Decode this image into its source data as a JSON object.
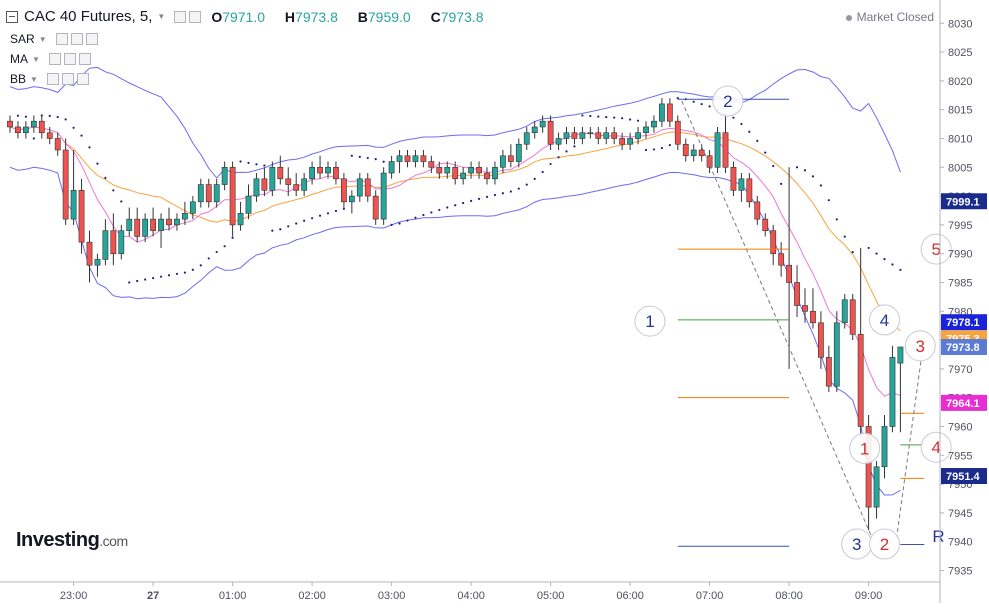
{
  "header": {
    "title": "CAC 40 Futures, 5,",
    "open_label": "O",
    "open_value": "7971.0",
    "high_label": "H",
    "high_value": "7973.8",
    "low_label": "B",
    "low_value": "7959.0",
    "close_label": "C",
    "close_value": "7973.8",
    "market_status": "Market Closed"
  },
  "indicators": [
    {
      "label": "SAR"
    },
    {
      "label": "MA"
    },
    {
      "label": "BB"
    }
  ],
  "logo": {
    "main": "Investing",
    "suffix": ".com"
  },
  "colors": {
    "up": "#26a69a",
    "down": "#ef5350",
    "bb": "#6c6cf2",
    "ma_fast": "#ee78d6",
    "ma_slow": "#f7a440",
    "sar": "#1a237e",
    "fib_orange": "#f57c00",
    "fib_green": "#43a047",
    "fib_navy": "#1a237e",
    "wave_red": "#d32f2f",
    "wave_navy": "#283593"
  },
  "chart_data": {
    "type": "candlestick",
    "symbol": "CAC 40 Futures",
    "interval": "5",
    "y_axis": {
      "range": [
        7933,
        8033
      ],
      "ticks": [
        7935,
        7940,
        7945,
        7950,
        7955,
        7960,
        7965,
        7970,
        7975,
        7980,
        7985,
        7990,
        7995,
        8000,
        8005,
        8010,
        8015,
        8020,
        8025,
        8030
      ]
    },
    "x_axis": {
      "ticks": [
        {
          "label": "23:00",
          "index": 8
        },
        {
          "label": "27",
          "index": 18
        },
        {
          "label": "01:00",
          "index": 28
        },
        {
          "label": "02:00",
          "index": 38
        },
        {
          "label": "03:00",
          "index": 48
        },
        {
          "label": "04:00",
          "index": 58
        },
        {
          "label": "05:00",
          "index": 68
        },
        {
          "label": "06:00",
          "index": 78
        },
        {
          "label": "07:00",
          "index": 88
        },
        {
          "label": "08:00",
          "index": 98
        },
        {
          "label": "09:00",
          "index": 108
        }
      ]
    },
    "candles": [
      {
        "o": 8013,
        "h": 8014,
        "l": 8011,
        "c": 8012
      },
      {
        "o": 8012,
        "h": 8013,
        "l": 8010,
        "c": 8011
      },
      {
        "o": 8011,
        "h": 8013,
        "l": 8010,
        "c": 8012
      },
      {
        "o": 8012,
        "h": 8014,
        "l": 8011,
        "c": 8013
      },
      {
        "o": 8013,
        "h": 8014,
        "l": 8010,
        "c": 8011
      },
      {
        "o": 8011,
        "h": 8012,
        "l": 8009,
        "c": 8010
      },
      {
        "o": 8010,
        "h": 8011,
        "l": 8007,
        "c": 8008
      },
      {
        "o": 8008,
        "h": 8010,
        "l": 7995,
        "c": 7996
      },
      {
        "o": 7996,
        "h": 8008,
        "l": 7995,
        "c": 8001
      },
      {
        "o": 8001,
        "h": 8003,
        "l": 7990,
        "c": 7992
      },
      {
        "o": 7992,
        "h": 7994,
        "l": 7985,
        "c": 7988
      },
      {
        "o": 7988,
        "h": 7990,
        "l": 7986,
        "c": 7989
      },
      {
        "o": 7989,
        "h": 7996,
        "l": 7988,
        "c": 7994
      },
      {
        "o": 7994,
        "h": 7997,
        "l": 7988,
        "c": 7990
      },
      {
        "o": 7990,
        "h": 7995,
        "l": 7989,
        "c": 7994
      },
      {
        "o": 7994,
        "h": 7998,
        "l": 7993,
        "c": 7996
      },
      {
        "o": 7996,
        "h": 7998,
        "l": 7992,
        "c": 7993
      },
      {
        "o": 7993,
        "h": 7997,
        "l": 7992,
        "c": 7996
      },
      {
        "o": 7996,
        "h": 7998,
        "l": 7993,
        "c": 7994
      },
      {
        "o": 7994,
        "h": 7997,
        "l": 7991,
        "c": 7996
      },
      {
        "o": 7996,
        "h": 7998,
        "l": 7994,
        "c": 7995
      },
      {
        "o": 7995,
        "h": 7997,
        "l": 7994,
        "c": 7996
      },
      {
        "o": 7996,
        "h": 7999,
        "l": 7995,
        "c": 7997
      },
      {
        "o": 7997,
        "h": 8000,
        "l": 7996,
        "c": 7999
      },
      {
        "o": 7999,
        "h": 8003,
        "l": 7998,
        "c": 8002
      },
      {
        "o": 8002,
        "h": 8003,
        "l": 7998,
        "c": 7999
      },
      {
        "o": 7999,
        "h": 8003,
        "l": 7998,
        "c": 8002
      },
      {
        "o": 8002,
        "h": 8006,
        "l": 8001,
        "c": 8005
      },
      {
        "o": 8005,
        "h": 8006,
        "l": 7993,
        "c": 7995
      },
      {
        "o": 7995,
        "h": 7999,
        "l": 7994,
        "c": 7997
      },
      {
        "o": 7997,
        "h": 8002,
        "l": 7996,
        "c": 8000
      },
      {
        "o": 8000,
        "h": 8004,
        "l": 7999,
        "c": 8003
      },
      {
        "o": 8003,
        "h": 8005,
        "l": 8000,
        "c": 8001
      },
      {
        "o": 8001,
        "h": 8006,
        "l": 8000,
        "c": 8005
      },
      {
        "o": 8005,
        "h": 8007,
        "l": 8002,
        "c": 8003
      },
      {
        "o": 8003,
        "h": 8005,
        "l": 8000,
        "c": 8002
      },
      {
        "o": 8002,
        "h": 8004,
        "l": 8000,
        "c": 8001
      },
      {
        "o": 8001,
        "h": 8004,
        "l": 8000,
        "c": 8003
      },
      {
        "o": 8003,
        "h": 8006,
        "l": 8002,
        "c": 8005
      },
      {
        "o": 8005,
        "h": 8007,
        "l": 8003,
        "c": 8004
      },
      {
        "o": 8004,
        "h": 8006,
        "l": 8003,
        "c": 8005
      },
      {
        "o": 8005,
        "h": 8006,
        "l": 8002,
        "c": 8003
      },
      {
        "o": 8003,
        "h": 8004,
        "l": 7998,
        "c": 7999
      },
      {
        "o": 7999,
        "h": 8001,
        "l": 7997,
        "c": 8000
      },
      {
        "o": 8000,
        "h": 8004,
        "l": 7999,
        "c": 8003
      },
      {
        "o": 8003,
        "h": 8004,
        "l": 7999,
        "c": 8000
      },
      {
        "o": 8000,
        "h": 8001,
        "l": 7995,
        "c": 7996
      },
      {
        "o": 7996,
        "h": 8005,
        "l": 7995,
        "c": 8004
      },
      {
        "o": 8004,
        "h": 8007,
        "l": 8003,
        "c": 8006
      },
      {
        "o": 8006,
        "h": 8008,
        "l": 8004,
        "c": 8007
      },
      {
        "o": 8007,
        "h": 8008,
        "l": 8005,
        "c": 8006
      },
      {
        "o": 8006,
        "h": 8008,
        "l": 8005,
        "c": 8007
      },
      {
        "o": 8007,
        "h": 8008,
        "l": 8005,
        "c": 8006
      },
      {
        "o": 8006,
        "h": 8007,
        "l": 8004,
        "c": 8005
      },
      {
        "o": 8005,
        "h": 8006,
        "l": 8003,
        "c": 8004
      },
      {
        "o": 8004,
        "h": 8006,
        "l": 8003,
        "c": 8005
      },
      {
        "o": 8005,
        "h": 8006,
        "l": 8002,
        "c": 8003
      },
      {
        "o": 8003,
        "h": 8005,
        "l": 8002,
        "c": 8004
      },
      {
        "o": 8004,
        "h": 8006,
        "l": 8003,
        "c": 8005
      },
      {
        "o": 8005,
        "h": 8006,
        "l": 8003,
        "c": 8004
      },
      {
        "o": 8004,
        "h": 8005,
        "l": 8002,
        "c": 8003
      },
      {
        "o": 8003,
        "h": 8006,
        "l": 8002,
        "c": 8005
      },
      {
        "o": 8005,
        "h": 8008,
        "l": 8004,
        "c": 8007
      },
      {
        "o": 8007,
        "h": 8009,
        "l": 8005,
        "c": 8006
      },
      {
        "o": 8006,
        "h": 8010,
        "l": 8005,
        "c": 8009
      },
      {
        "o": 8009,
        "h": 8012,
        "l": 8008,
        "c": 8011
      },
      {
        "o": 8011,
        "h": 8013,
        "l": 8010,
        "c": 8012
      },
      {
        "o": 8012,
        "h": 8014,
        "l": 8011,
        "c": 8013
      },
      {
        "o": 8013,
        "h": 8014,
        "l": 8008,
        "c": 8009
      },
      {
        "o": 8009,
        "h": 8011,
        "l": 8008,
        "c": 8010
      },
      {
        "o": 8010,
        "h": 8012,
        "l": 8009,
        "c": 8011
      },
      {
        "o": 8011,
        "h": 8012,
        "l": 8009,
        "c": 8010
      },
      {
        "o": 8010,
        "h": 8012,
        "l": 8009,
        "c": 8011
      },
      {
        "o": 8011,
        "h": 8012,
        "l": 8010,
        "c": 8011
      },
      {
        "o": 8011,
        "h": 8012,
        "l": 8009,
        "c": 8010
      },
      {
        "o": 8010,
        "h": 8012,
        "l": 8009,
        "c": 8011
      },
      {
        "o": 8011,
        "h": 8012,
        "l": 8009,
        "c": 8010
      },
      {
        "o": 8010,
        "h": 8011,
        "l": 8008,
        "c": 8009
      },
      {
        "o": 8009,
        "h": 8011,
        "l": 8008,
        "c": 8010
      },
      {
        "o": 8010,
        "h": 8012,
        "l": 8009,
        "c": 8011
      },
      {
        "o": 8011,
        "h": 8013,
        "l": 8010,
        "c": 8012
      },
      {
        "o": 8012,
        "h": 8014,
        "l": 8011,
        "c": 8013
      },
      {
        "o": 8013,
        "h": 8017,
        "l": 8012,
        "c": 8016
      },
      {
        "o": 8016,
        "h": 8017,
        "l": 8012,
        "c": 8013
      },
      {
        "o": 8013,
        "h": 8014,
        "l": 8008,
        "c": 8009
      },
      {
        "o": 8009,
        "h": 8010,
        "l": 8006,
        "c": 8007
      },
      {
        "o": 8007,
        "h": 8009,
        "l": 8006,
        "c": 8008
      },
      {
        "o": 8008,
        "h": 8009,
        "l": 8006,
        "c": 8007
      },
      {
        "o": 8007,
        "h": 8008,
        "l": 8004,
        "c": 8005
      },
      {
        "o": 8005,
        "h": 8012,
        "l": 8004,
        "c": 8011
      },
      {
        "o": 8011,
        "h": 8014,
        "l": 8004,
        "c": 8005
      },
      {
        "o": 8005,
        "h": 8006,
        "l": 8000,
        "c": 8001
      },
      {
        "o": 8001,
        "h": 8004,
        "l": 7999,
        "c": 8003
      },
      {
        "o": 8003,
        "h": 8004,
        "l": 7998,
        "c": 7999
      },
      {
        "o": 7999,
        "h": 8000,
        "l": 7995,
        "c": 7996
      },
      {
        "o": 7996,
        "h": 7997,
        "l": 7993,
        "c": 7994
      },
      {
        "o": 7994,
        "h": 7995,
        "l": 7988,
        "c": 7990
      },
      {
        "o": 7990,
        "h": 7992,
        "l": 7986,
        "c": 7988
      },
      {
        "o": 7988,
        "h": 8005,
        "l": 7970,
        "c": 7985
      },
      {
        "o": 7985,
        "h": 7988,
        "l": 7979,
        "c": 7981
      },
      {
        "o": 7981,
        "h": 7984,
        "l": 7978,
        "c": 7980
      },
      {
        "o": 7980,
        "h": 7984,
        "l": 7977,
        "c": 7978
      },
      {
        "o": 7978,
        "h": 7980,
        "l": 7970,
        "c": 7972
      },
      {
        "o": 7972,
        "h": 7974,
        "l": 7966,
        "c": 7967
      },
      {
        "o": 7967,
        "h": 7980,
        "l": 7966,
        "c": 7978
      },
      {
        "o": 7978,
        "h": 7983,
        "l": 7977,
        "c": 7982
      },
      {
        "o": 7982,
        "h": 7983,
        "l": 7975,
        "c": 7976
      },
      {
        "o": 7976,
        "h": 7991,
        "l": 7958,
        "c": 7960
      },
      {
        "o": 7960,
        "h": 7962,
        "l": 7942,
        "c": 7946
      },
      {
        "o": 7946,
        "h": 7954,
        "l": 7944,
        "c": 7953
      },
      {
        "o": 7953,
        "h": 7962,
        "l": 7951,
        "c": 7960
      },
      {
        "o": 7960,
        "h": 7974,
        "l": 7959,
        "c": 7972
      },
      {
        "o": 7971,
        "h": 7973.8,
        "l": 7959,
        "c": 7973.8
      }
    ],
    "price_labels": [
      {
        "value": 7999.1,
        "text": "7999.1",
        "color": "#1a2b8c"
      },
      {
        "value": 7978.1,
        "text": "7978.1",
        "color": "#1a23d9"
      },
      {
        "value": 7975.3,
        "text": "7975.3",
        "color": "#f7a440"
      },
      {
        "value": 7973.8,
        "text": "7973.8",
        "color": "#5b7bd5"
      },
      {
        "value": 7964.1,
        "text": "7964.1",
        "color": "#e82dd3"
      },
      {
        "value": 7951.4,
        "text": "7951.4",
        "color": "#1a2b8c"
      }
    ],
    "fib_levels": [
      {
        "price": 8016.8,
        "color": "#3f51b5",
        "x1": 84,
        "x2": 98
      },
      {
        "price": 7990.8,
        "color": "#f57c00",
        "x1": 84,
        "x2": 98
      },
      {
        "price": 7978.5,
        "color": "#43a047",
        "x1": 84,
        "x2": 98
      },
      {
        "price": 7965.0,
        "color": "#f57c00",
        "x1": 84,
        "x2": 98
      },
      {
        "price": 7939.2,
        "color": "#3f51b5",
        "x1": 84,
        "x2": 98
      },
      {
        "price": 7962.3,
        "color": "#f57c00",
        "x1": 112,
        "x2": 115
      },
      {
        "price": 7956.8,
        "color": "#43a047",
        "x1": 112,
        "x2": 115
      },
      {
        "price": 7951.0,
        "color": "#f57c00",
        "x1": 112,
        "x2": 115
      },
      {
        "price": 7939.5,
        "color": "#3f51b5",
        "x1": 112,
        "x2": 115
      }
    ],
    "wave_lines": [
      {
        "points": [
          [
            84.5,
            8016.5
          ],
          [
            108.5,
            7940.5
          ]
        ],
        "dash": true
      },
      {
        "points": [
          [
            111.5,
            7940.5
          ],
          [
            115,
            7975.5
          ]
        ],
        "dash": true
      }
    ],
    "wave_labels": [
      {
        "text": "1",
        "index": 80.5,
        "price": 7978.3,
        "color": "#283593",
        "circle": true
      },
      {
        "text": "2",
        "index": 90.3,
        "price": 8016.5,
        "color": "#283593",
        "circle": true
      },
      {
        "text": "3",
        "index": 106.5,
        "price": 7939.6,
        "color": "#283593",
        "circle": true
      },
      {
        "text": "4",
        "index": 110,
        "price": 7978.5,
        "color": "#283593",
        "circle": true
      },
      {
        "text": "5",
        "index": 116.5,
        "price": 7990.8,
        "color": "#d32f2f",
        "circle": true
      },
      {
        "text": "1",
        "index": 107.5,
        "price": 7956.2,
        "color": "#d32f2f",
        "circle": true
      },
      {
        "text": "2",
        "index": 110,
        "price": 7939.6,
        "color": "#d32f2f",
        "circle": true
      },
      {
        "text": "3",
        "index": 114.5,
        "price": 7974.0,
        "color": "#d32f2f",
        "circle": true
      },
      {
        "text": "4",
        "index": 116.5,
        "price": 7956.4,
        "color": "#d32f2f",
        "circle": true
      },
      {
        "text": "R",
        "index": 116.8,
        "price": 7941.0,
        "color": "#283593",
        "circle": false
      }
    ]
  }
}
